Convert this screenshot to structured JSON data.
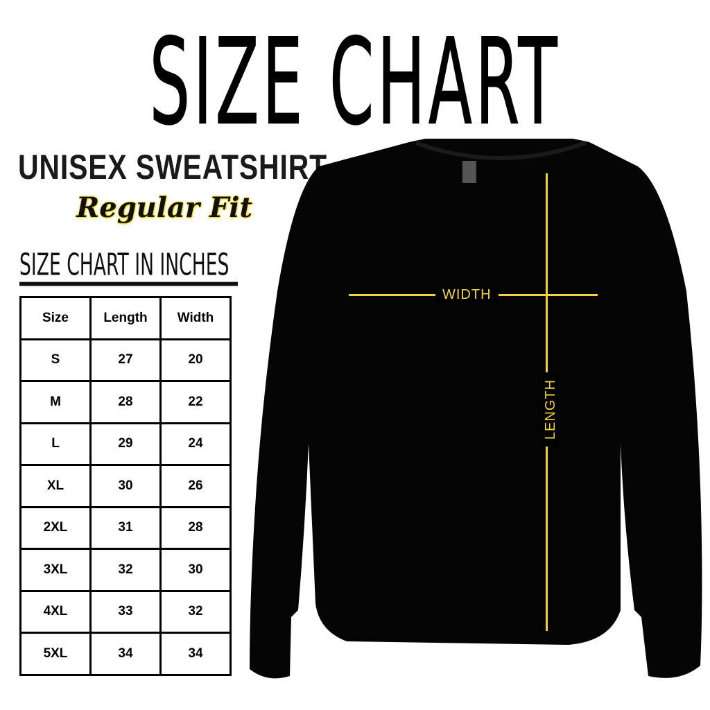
{
  "title": "SIZE CHART",
  "product": "UNISEX SWEATSHIRT",
  "fit": "Regular Fit",
  "units_heading": "SIZE CHART IN INCHES",
  "table": {
    "headers": [
      "Size",
      "Length",
      "Width"
    ],
    "rows": [
      [
        "S",
        "27",
        "20"
      ],
      [
        "M",
        "28",
        "22"
      ],
      [
        "L",
        "29",
        "24"
      ],
      [
        "XL",
        "30",
        "26"
      ],
      [
        "2XL",
        "31",
        "28"
      ],
      [
        "3XL",
        "32",
        "30"
      ],
      [
        "4XL",
        "33",
        "32"
      ],
      [
        "5XL",
        "34",
        "34"
      ]
    ]
  },
  "diagram": {
    "width_label": "WIDTH",
    "length_label": "LENGTH",
    "line_color": "#f2d43a",
    "garment_color": "#000000"
  }
}
